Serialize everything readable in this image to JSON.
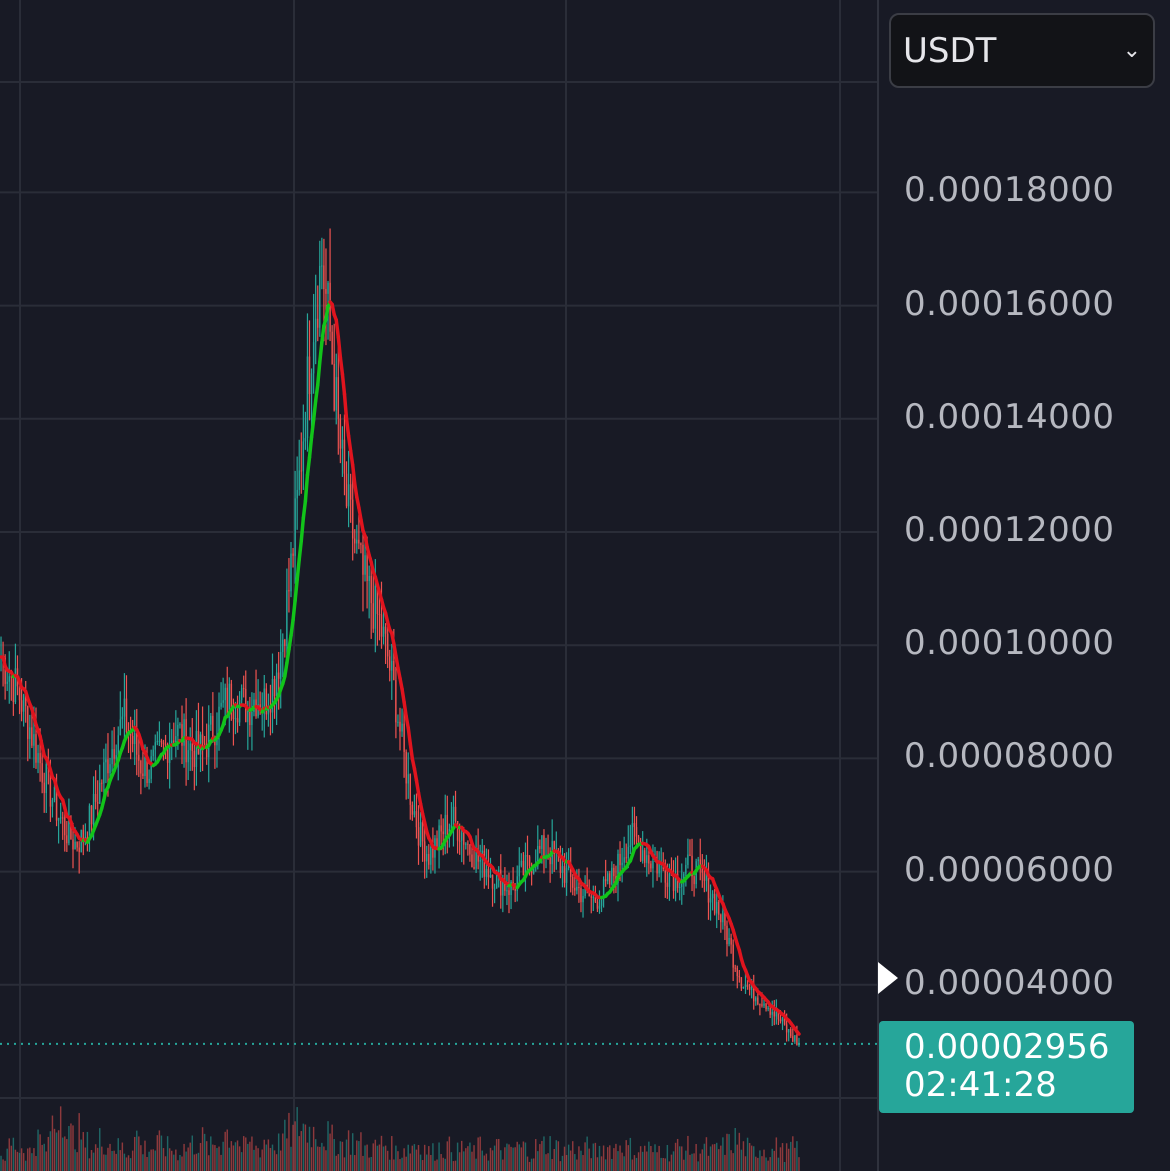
{
  "currency": {
    "selected": "USDT",
    "chevron_icon": "chevron-down-icon"
  },
  "price_axis": {
    "labels": [
      "0.00018000",
      "0.00016000",
      "0.00014000",
      "0.00012000",
      "0.00010000",
      "0.00008000",
      "0.00006000",
      "0.00004000"
    ]
  },
  "last_price": {
    "value": "0.00002956",
    "countdown": "02:41:28",
    "color": "#26a69a"
  },
  "colors": {
    "up": "#26a69a",
    "down": "#ef5350",
    "ma_up": "#12c41a",
    "ma_down": "#e0141e",
    "grid": "#2a2d38",
    "background": "#181a25"
  },
  "chart_data": {
    "type": "candlestick",
    "yunit": "USDT",
    "ylim": [
      2.15e-05,
      0.00021
    ],
    "grid": true,
    "ticks": [
      0.00018,
      0.00016,
      0.00014,
      0.00012,
      0.0001,
      8e-05,
      6e-05,
      4e-05
    ],
    "last": 2.956e-05,
    "indicator": "moving-average (green rising, red falling)",
    "close": [
      9.8e-05,
      9.5e-05,
      9.2e-05,
      8.8e-05,
      8.3e-05,
      7.8e-05,
      7.4e-05,
      7e-05,
      6.7e-05,
      6.5e-05,
      6.6e-05,
      7e-05,
      7.5e-05,
      8e-05,
      8.4e-05,
      8.7e-05,
      8.3e-05,
      7.9e-05,
      7.8e-05,
      8e-05,
      8.2e-05,
      8.5e-05,
      8.4e-05,
      8.2e-05,
      8.1e-05,
      8.3e-05,
      8.6e-05,
      8.9e-05,
      9.1e-05,
      9e-05,
      8.9e-05,
      9.1e-05,
      9e-05,
      9.3e-05,
      9.9e-05,
      0.00011,
      0.000125,
      0.000142,
      0.000158,
      0.000168,
      0.000155,
      0.000138,
      0.000125,
      0.000118,
      0.000112,
      0.000108,
      0.000104,
      9.8e-05,
      9e-05,
      8e-05,
      7.2e-05,
      6.6e-05,
      6.3e-05,
      6.5e-05,
      6.8e-05,
      6.9e-05,
      6.7e-05,
      6.4e-05,
      6.2e-05,
      6.1e-05,
      5.9e-05,
      5.8e-05,
      5.7e-05,
      5.9e-05,
      6.1e-05,
      6.3e-05,
      6.4e-05,
      6.3e-05,
      6.1e-05,
      5.9e-05,
      5.7e-05,
      5.6e-05,
      5.5e-05,
      5.6e-05,
      5.8e-05,
      6.1e-05,
      6.5e-05,
      6.6e-05,
      6.4e-05,
      6.2e-05,
      6.1e-05,
      6e-05,
      5.9e-05,
      6e-05,
      6.1e-05,
      5.9e-05,
      5.7e-05,
      5.4e-05,
      5e-05,
      4.5e-05,
      4.1e-05,
      3.9e-05,
      3.8e-05,
      3.7e-05,
      3.5e-05,
      3.3e-05,
      3.1e-05,
      2.96e-05
    ],
    "volume_relative": [
      0.2,
      0.35,
      0.3,
      0.25,
      0.4,
      0.3,
      0.6,
      0.9,
      0.45,
      0.5,
      0.35,
      0.3,
      0.4,
      0.35,
      0.3,
      0.25,
      0.45,
      0.3,
      0.3,
      0.35,
      0.3,
      0.25,
      0.3,
      0.35,
      0.4,
      0.3,
      0.35,
      0.5,
      0.45,
      0.3,
      0.35,
      0.3,
      0.4,
      0.35,
      0.45,
      0.5,
      0.6,
      0.55,
      0.5,
      0.45,
      0.4,
      0.35,
      0.4,
      0.35,
      0.3,
      0.3,
      0.35,
      0.3,
      0.25,
      0.3,
      0.35,
      0.3,
      0.25,
      0.3,
      0.3,
      0.25,
      0.3,
      0.25,
      0.3,
      0.25,
      0.3,
      0.25,
      0.3,
      0.3,
      0.25,
      0.3,
      0.35,
      0.3,
      0.25,
      0.3,
      0.25,
      0.3,
      0.25,
      0.3,
      0.3,
      0.35,
      0.3,
      0.25,
      0.3,
      0.25,
      0.3,
      0.25,
      0.3,
      0.3,
      0.25,
      0.3,
      0.25,
      0.3,
      0.35,
      0.4,
      0.3,
      0.25,
      0.3,
      0.25,
      0.3,
      0.25,
      0.3,
      0.3
    ]
  }
}
